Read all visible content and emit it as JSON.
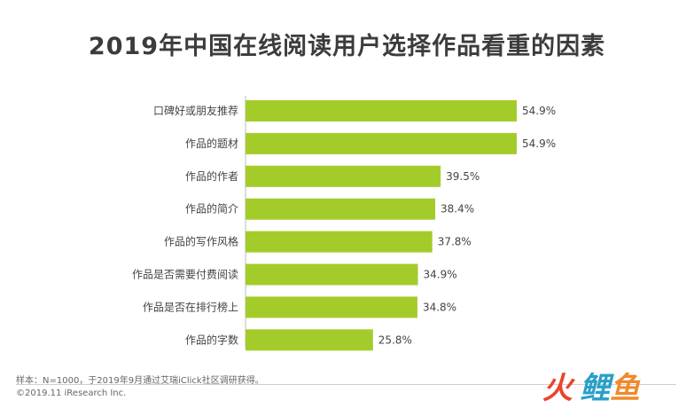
{
  "chart_data": {
    "type": "bar",
    "orientation": "horizontal",
    "title": "2019年中国在线阅读用户选择作品看重的因素",
    "categories": [
      "口碑好或朋友推荐",
      "作品的题材",
      "作品的作者",
      "作品的简介",
      "作品的写作风格",
      "作品是否需要付费阅读",
      "作品是否在排行榜上",
      "作品的字数"
    ],
    "values": [
      54.9,
      54.9,
      39.5,
      38.4,
      37.8,
      34.9,
      34.8,
      25.8
    ],
    "value_labels": [
      "54.9%",
      "54.9%",
      "39.5%",
      "38.4%",
      "37.8%",
      "34.9%",
      "34.8%",
      "25.8%"
    ],
    "xlim": [
      0,
      54.9
    ],
    "bar_color": "#a3cc2a",
    "grid": false,
    "legend": "none"
  },
  "footer": {
    "note": "样本：N=1000，于2019年9月通过艾瑞iClick社区调研获得。",
    "copyright": "©2019.11 iResearch Inc."
  },
  "watermark": {
    "text": [
      "火",
      "鲤",
      "鱼"
    ],
    "colors": [
      "#e8452c",
      "#2aa0c8",
      "#f08a2a"
    ]
  }
}
